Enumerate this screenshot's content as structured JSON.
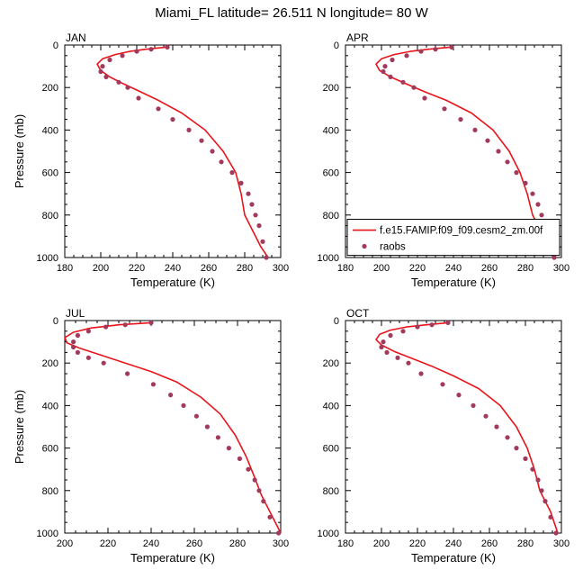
{
  "page": {
    "title": "Miami_FL  latitude= 26.511 N longitude= 80 W"
  },
  "colors": {
    "model_line": "#e8141b",
    "obs_marker": "#a23a5c",
    "axis": "#000000"
  },
  "chart_data": [
    {
      "type": "line",
      "panel_label": "JAN",
      "xlabel": "Temperature (K)",
      "ylabel": "Pressure (mb)",
      "xlim": [
        180,
        300
      ],
      "ylim": [
        1000,
        0
      ],
      "xticks": [
        "180",
        "200",
        "220",
        "240",
        "260",
        "280",
        "300"
      ],
      "yticks": [
        "0",
        "200",
        "400",
        "600",
        "800",
        "1000"
      ],
      "series": [
        {
          "kind": "line",
          "x": [
            236,
            225,
            216,
            208,
            201,
            198,
            200,
            205,
            212,
            222,
            232,
            245,
            258,
            268,
            275,
            278,
            280,
            283,
            286,
            289,
            293
          ],
          "y": [
            10,
            20,
            30,
            45,
            65,
            90,
            120,
            150,
            180,
            220,
            260,
            320,
            400,
            500,
            600,
            700,
            800,
            850,
            900,
            950,
            1000
          ]
        },
        {
          "kind": "scatter",
          "x": [
            237,
            228,
            220,
            212,
            205,
            201,
            200,
            203,
            210,
            215,
            221,
            232,
            240,
            249,
            256,
            262,
            267,
            273,
            278,
            282,
            284,
            286,
            288,
            290,
            292
          ],
          "y": [
            10,
            20,
            30,
            50,
            70,
            100,
            125,
            150,
            175,
            200,
            250,
            300,
            350,
            400,
            450,
            500,
            550,
            600,
            650,
            700,
            750,
            800,
            850,
            925,
            1000
          ]
        }
      ]
    },
    {
      "type": "line",
      "panel_label": "APR",
      "xlabel": "Temperature (K)",
      "ylabel": "Pressure (mb)",
      "xlim": [
        180,
        300
      ],
      "ylim": [
        1000,
        0
      ],
      "xticks": [
        "180",
        "200",
        "220",
        "240",
        "260",
        "280",
        "300"
      ],
      "yticks": [
        "0",
        "200",
        "400",
        "600",
        "800",
        "1000"
      ],
      "legend": {
        "placement": "bottom-right",
        "entries": [
          "f.e15.FAMIP.f09_f09.cesm2_zm.00f",
          "raobs"
        ]
      },
      "series": [
        {
          "name": "f.e15.FAMIP.f09_f09.cesm2_zm.00f",
          "kind": "line",
          "x": [
            238,
            226,
            216,
            207,
            200,
            197,
            199,
            205,
            213,
            224,
            236,
            250,
            262,
            271,
            277,
            281,
            284,
            287,
            291,
            294,
            296
          ],
          "y": [
            10,
            20,
            30,
            45,
            65,
            90,
            120,
            150,
            180,
            220,
            260,
            320,
            400,
            500,
            600,
            700,
            800,
            850,
            900,
            950,
            1000
          ]
        },
        {
          "name": "raobs",
          "kind": "scatter",
          "x": [
            239,
            230,
            222,
            214,
            206,
            202,
            201,
            205,
            212,
            218,
            224,
            235,
            244,
            252,
            259,
            265,
            270,
            275,
            280,
            284,
            287,
            289,
            291,
            293,
            296
          ],
          "y": [
            10,
            20,
            30,
            50,
            70,
            100,
            125,
            150,
            175,
            200,
            250,
            300,
            350,
            400,
            450,
            500,
            550,
            600,
            650,
            700,
            750,
            800,
            850,
            925,
            1000
          ]
        }
      ]
    },
    {
      "type": "line",
      "panel_label": "JUL",
      "xlabel": "Temperature (K)",
      "ylabel": "Pressure (mb)",
      "xlim": [
        200,
        300
      ],
      "ylim": [
        1000,
        0
      ],
      "xticks": [
        "200",
        "220",
        "240",
        "260",
        "280",
        "300"
      ],
      "yticks": [
        "0",
        "200",
        "400",
        "600",
        "800",
        "1000"
      ],
      "series": [
        {
          "kind": "line",
          "x": [
            240,
            225,
            212,
            204,
            200,
            201,
            207,
            216,
            228,
            240,
            252,
            263,
            272,
            279,
            284,
            288,
            291,
            294,
            297,
            300
          ],
          "y": [
            10,
            20,
            35,
            55,
            80,
            105,
            130,
            160,
            200,
            240,
            290,
            360,
            440,
            540,
            640,
            740,
            820,
            880,
            940,
            1000
          ]
        },
        {
          "kind": "scatter",
          "x": [
            240,
            228,
            219,
            211,
            206,
            204,
            204,
            206,
            211,
            218,
            229,
            241,
            249,
            255,
            261,
            266,
            271,
            276,
            281,
            285,
            288,
            290,
            292,
            295,
            299
          ],
          "y": [
            10,
            20,
            30,
            50,
            70,
            100,
            125,
            150,
            175,
            200,
            250,
            300,
            350,
            400,
            450,
            500,
            550,
            600,
            650,
            700,
            750,
            800,
            850,
            925,
            1000
          ]
        }
      ]
    },
    {
      "type": "line",
      "panel_label": "OCT",
      "xlabel": "Temperature (K)",
      "ylabel": "Pressure (mb)",
      "xlim": [
        180,
        300
      ],
      "ylim": [
        1000,
        0
      ],
      "xticks": [
        "180",
        "200",
        "220",
        "240",
        "260",
        "280",
        "300"
      ],
      "yticks": [
        "0",
        "200",
        "400",
        "600",
        "800",
        "1000"
      ],
      "series": [
        {
          "kind": "line",
          "x": [
            237,
            225,
            214,
            205,
            199,
            197,
            200,
            207,
            216,
            228,
            240,
            254,
            266,
            275,
            281,
            285,
            288,
            291,
            294,
            296,
            298
          ],
          "y": [
            10,
            20,
            30,
            45,
            65,
            90,
            115,
            145,
            175,
            215,
            260,
            320,
            400,
            500,
            600,
            700,
            800,
            850,
            900,
            950,
            1000
          ]
        },
        {
          "kind": "scatter",
          "x": [
            237,
            228,
            220,
            212,
            205,
            201,
            200,
            203,
            209,
            215,
            222,
            234,
            243,
            251,
            258,
            264,
            270,
            275,
            280,
            284,
            287,
            289,
            291,
            294,
            297
          ],
          "y": [
            10,
            20,
            30,
            50,
            70,
            100,
            125,
            150,
            175,
            200,
            250,
            300,
            350,
            400,
            450,
            500,
            550,
            600,
            650,
            700,
            750,
            800,
            850,
            925,
            1000
          ]
        }
      ]
    }
  ]
}
